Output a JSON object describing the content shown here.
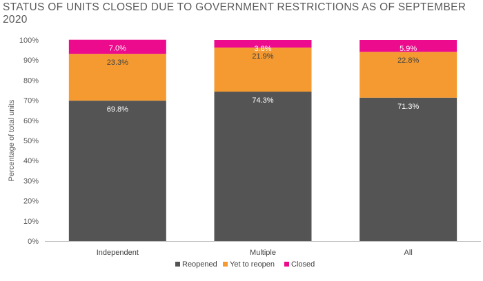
{
  "title": "STATUS OF UNITS CLOSED DUE TO GOVERNMENT RESTRICTIONS AS OF SEPTEMBER 2020",
  "chart_data": {
    "type": "bar",
    "stacked": true,
    "title": "STATUS OF UNITS CLOSED DUE TO GOVERNMENT RESTRICTIONS AS OF SEPTEMBER 2020",
    "xlabel": "",
    "ylabel": "Percentage of total units",
    "ylim": [
      0,
      100
    ],
    "yticks": [
      "0%",
      "10%",
      "20%",
      "30%",
      "40%",
      "50%",
      "60%",
      "70%",
      "80%",
      "90%",
      "100%"
    ],
    "categories": [
      "Independent",
      "Multiple",
      "All"
    ],
    "series": [
      {
        "name": "Reopened",
        "color": "#545454",
        "values": [
          69.8,
          74.3,
          71.3
        ],
        "labels": [
          "69.8%",
          "74.3%",
          "71.3%"
        ]
      },
      {
        "name": "Yet to reopen",
        "color": "#f49a31",
        "values": [
          23.3,
          21.9,
          22.8
        ],
        "labels": [
          "23.3%",
          "21.9%",
          "22.8%"
        ]
      },
      {
        "name": "Closed",
        "color": "#ec0b8d",
        "values": [
          7.0,
          3.8,
          5.9
        ],
        "labels": [
          "7.0%",
          "3.8%",
          "5.9%"
        ]
      }
    ],
    "grid": false,
    "legend_position": "bottom-center"
  }
}
